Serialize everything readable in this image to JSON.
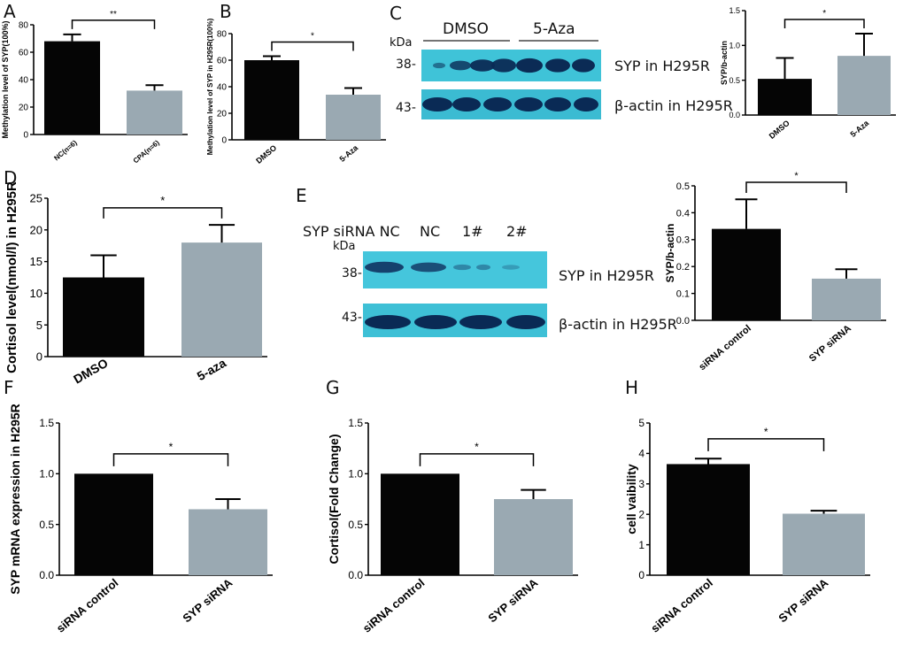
{
  "panel_letters": [
    "A",
    "B",
    "C",
    "D",
    "E",
    "F",
    "G",
    "H"
  ],
  "blot_c": {
    "group_labels": [
      "DMSO",
      "5-Aza"
    ],
    "kda_label": "kDa",
    "mw_top": "38-",
    "mw_bottom": "43-",
    "band_label_top": "SYP in H295R",
    "band_label_bottom": "β-actin in H295R"
  },
  "blot_e": {
    "lane_labels": [
      "SYP siRNA NC",
      "NC",
      "1#",
      "2#"
    ],
    "kda_label": "kDa",
    "mw_top": "38-",
    "mw_bottom": "43-",
    "band_label_top": "SYP in H295R",
    "band_label_bottom": "β-actin in H295R"
  },
  "chart_data": [
    {
      "id": "A",
      "type": "bar",
      "categories": [
        "NC(n=6)",
        "CPA(n=6)"
      ],
      "values": [
        68,
        32
      ],
      "errors": [
        5,
        4
      ],
      "ylabel": "Methylation level of SYP(100%)",
      "ylim": [
        0,
        80
      ],
      "yticks": [
        "0",
        "20",
        "40",
        "60",
        "80"
      ],
      "significance": "**"
    },
    {
      "id": "B",
      "type": "bar",
      "categories": [
        "DMSO",
        "5-Aza"
      ],
      "values": [
        60,
        34
      ],
      "errors": [
        3,
        5
      ],
      "ylabel": "Methylation level of SYP in H295R(100%)",
      "ylim": [
        0,
        80
      ],
      "yticks": [
        "0",
        "20",
        "40",
        "60",
        "80"
      ],
      "significance": "*"
    },
    {
      "id": "C",
      "type": "bar",
      "categories": [
        "DMSO",
        "5-Aza"
      ],
      "values": [
        0.52,
        0.85
      ],
      "errors": [
        0.3,
        0.32
      ],
      "ylabel": "SYP/b-actin",
      "ylim": [
        0,
        1.5
      ],
      "yticks": [
        "0.0",
        "0.5",
        "1.0",
        "1.5"
      ],
      "significance": "*"
    },
    {
      "id": "D",
      "type": "bar",
      "categories": [
        "DMSO",
        "5-aza"
      ],
      "values": [
        12.5,
        18
      ],
      "errors": [
        3.5,
        2.8
      ],
      "ylabel": "Cortisol level(nmol/l) in H295R",
      "ylim": [
        0,
        25
      ],
      "yticks": [
        "0",
        "5",
        "10",
        "15",
        "20",
        "25"
      ],
      "significance": "*"
    },
    {
      "id": "E",
      "type": "bar",
      "categories": [
        "siRNA control",
        "SYP siRNA"
      ],
      "values": [
        0.34,
        0.155
      ],
      "errors": [
        0.11,
        0.035
      ],
      "ylabel": "SYP/b-actin",
      "ylim": [
        0,
        0.5
      ],
      "yticks": [
        "0.0",
        "0.1",
        "0.2",
        "0.3",
        "0.4",
        "0.5"
      ],
      "significance": "*"
    },
    {
      "id": "F",
      "type": "bar",
      "categories": [
        "siRNA control",
        "SYP siRNA"
      ],
      "values": [
        1.0,
        0.65
      ],
      "errors": [
        0,
        0.1
      ],
      "ylabel": "SYP mRNA expression in H295R",
      "ylim": [
        0,
        1.5
      ],
      "yticks": [
        "0.0",
        "0.5",
        "1.0",
        "1.5"
      ],
      "significance": "*"
    },
    {
      "id": "G",
      "type": "bar",
      "categories": [
        "siRNA control",
        "SYP siRNA"
      ],
      "values": [
        1.0,
        0.75
      ],
      "errors": [
        0,
        0.09
      ],
      "ylabel": "Cortisol(Fold Change)",
      "ylim": [
        0,
        1.5
      ],
      "yticks": [
        "0.0",
        "0.5",
        "1.0",
        "1.5"
      ],
      "significance": "*"
    },
    {
      "id": "H",
      "type": "bar",
      "categories": [
        "siRNA control",
        "SYP siRNA"
      ],
      "values": [
        3.65,
        2.02
      ],
      "errors": [
        0.18,
        0.1
      ],
      "ylabel": "cell vaibility",
      "ylim": [
        0,
        5
      ],
      "yticks": [
        "0",
        "1",
        "2",
        "3",
        "4",
        "5"
      ],
      "significance": "*"
    }
  ]
}
